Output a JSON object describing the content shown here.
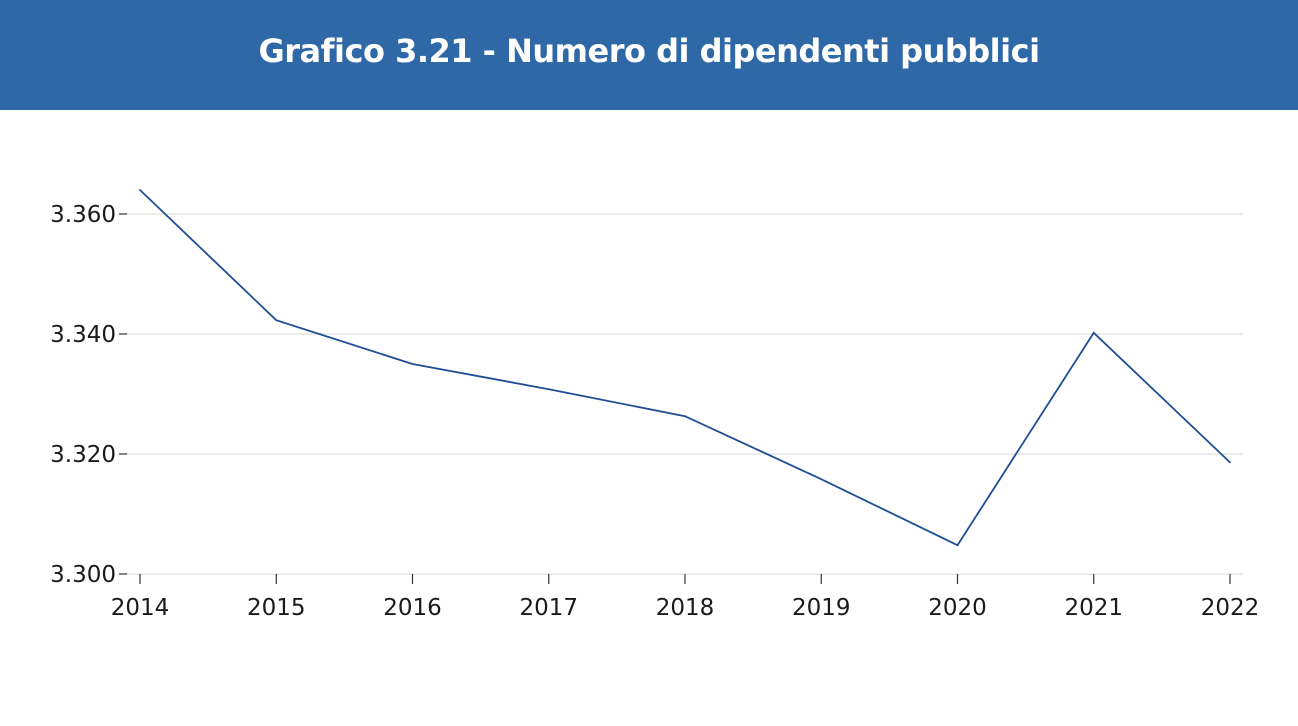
{
  "chart_data": {
    "type": "line",
    "title": "Grafico 3.21 - Numero di dipendenti pubblici",
    "x": [
      "2014",
      "2015",
      "2016",
      "2017",
      "2018",
      "2019",
      "2020",
      "2021",
      "2022"
    ],
    "y_tick_labels": [
      "3.300",
      "3.320",
      "3.340",
      "3.360"
    ],
    "y_ticks": [
      3300,
      3320,
      3340,
      3360
    ],
    "ylim": [
      3300,
      3364
    ],
    "grid": true,
    "series": [
      {
        "values": [
          3364,
          3342.3,
          3335,
          3330.8,
          3326.3,
          3315.8,
          3304.8,
          3340.2,
          3318.6
        ],
        "color": "#1f4e96"
      }
    ],
    "colors": {
      "header_bg": "#2f68a6",
      "grid": "#e6e6e6",
      "axis": "#cccccc"
    }
  }
}
